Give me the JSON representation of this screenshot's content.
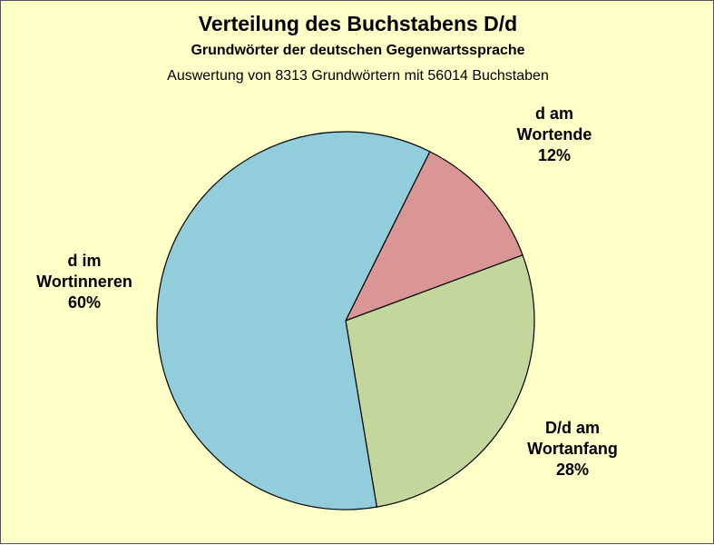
{
  "chart_data": {
    "type": "pie",
    "title": "Verteilung des Buchstabens D/d",
    "subtitle": "Grundwörter der deutschen Gegenwartssprache",
    "note": "Auswertung von 8313 Grundwörtern mit 56014 Buchstaben",
    "slices": [
      {
        "label_lines": [
          "d am",
          "Wortende"
        ],
        "value": 12,
        "value_label": "12%",
        "color": "#D99694"
      },
      {
        "label_lines": [
          "D/d am",
          "Wortanfang"
        ],
        "value": 28,
        "value_label": "28%",
        "color": "#C3D69B"
      },
      {
        "label_lines": [
          "d im",
          "Wortinneren"
        ],
        "value": 60,
        "value_label": "60%",
        "color": "#92CDDC"
      }
    ],
    "background": "#FFFFC8"
  }
}
